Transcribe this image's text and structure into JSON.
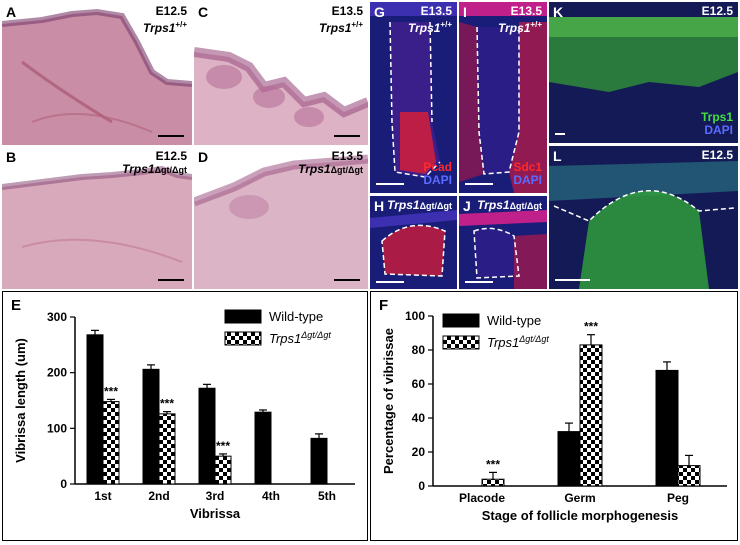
{
  "panels": {
    "A": {
      "letter": "A",
      "stage": "E12.5",
      "gene": "Trps1",
      "genotype": "+/+"
    },
    "B": {
      "letter": "B",
      "stage": "E12.5",
      "gene": "Trps1",
      "genotype": "Δgt/Δgt"
    },
    "C": {
      "letter": "C",
      "stage": "E13.5",
      "gene": "Trps1",
      "genotype": "+/+"
    },
    "D": {
      "letter": "D",
      "stage": "E13.5",
      "gene": "Trps1",
      "genotype": "Δgt/Δgt"
    },
    "G": {
      "letter": "G",
      "stage": "E13.5",
      "gene": "Trps1",
      "genotype": "+/+",
      "marker": "Pcad",
      "counterstain": "DAPI"
    },
    "I": {
      "letter": "I",
      "stage": "E13.5",
      "gene": "Trps1",
      "genotype": "+/+",
      "marker": "Sdc1",
      "counterstain": "DAPI"
    },
    "H": {
      "letter": "H",
      "gene": "Trps1",
      "genotype": "Δgt/Δgt"
    },
    "J": {
      "letter": "J",
      "gene": "Trps1",
      "genotype": "Δgt/Δgt"
    },
    "K": {
      "letter": "K",
      "stage": "E12.5",
      "marker": "Trps1",
      "counterstain": "DAPI"
    },
    "L": {
      "letter": "L",
      "stage": "E12.5"
    }
  },
  "colors": {
    "he_tissue": "#c7899f",
    "he_background": "#e3bfd0",
    "pcad_red": "#e8202a",
    "dapi_blue": "#2b2aa6",
    "trps1_green": "#3fb53f",
    "bar_black": "#000000"
  },
  "chart_data": [
    {
      "panel": "E",
      "type": "bar",
      "ylabel": "Vibrissa length (um)",
      "xlabel": "Vibrissa",
      "categories": [
        "1st",
        "2nd",
        "3rd",
        "4th",
        "5th"
      ],
      "ylim": [
        0,
        300
      ],
      "yticks": [
        "0",
        "100",
        "200",
        "300"
      ],
      "legend_position": "top-right",
      "series": [
        {
          "name": "Wild-type",
          "pattern": "solid",
          "values": [
            268,
            206,
            172,
            129,
            82
          ],
          "errors": [
            8,
            8,
            7,
            4,
            8
          ]
        },
        {
          "name_gene": "Trps1",
          "name_genotype": "Δgt/Δgt",
          "pattern": "checker",
          "values": [
            148,
            126,
            50,
            null,
            null
          ],
          "errors": [
            4,
            4,
            4,
            null,
            null
          ]
        }
      ],
      "annotations": [
        "***",
        "***",
        "***"
      ]
    },
    {
      "panel": "F",
      "type": "bar",
      "ylabel": "Percentage of vibrissae",
      "xlabel": "Stage of follicle morphogenesis",
      "categories": [
        "Placode",
        "Germ",
        "Peg"
      ],
      "ylim": [
        0,
        100
      ],
      "yticks": [
        "0",
        "20",
        "40",
        "60",
        "80",
        "100"
      ],
      "legend_position": "top-left",
      "series": [
        {
          "name": "Wild-type",
          "pattern": "solid",
          "values": [
            0,
            32,
            68
          ],
          "errors": [
            0,
            5,
            5
          ]
        },
        {
          "name_gene": "Trps1",
          "name_genotype": "Δgt/Δgt",
          "pattern": "checker",
          "values": [
            4,
            83,
            12
          ],
          "errors": [
            4,
            6,
            6
          ]
        }
      ],
      "annotations": [
        "***",
        "***"
      ]
    }
  ]
}
